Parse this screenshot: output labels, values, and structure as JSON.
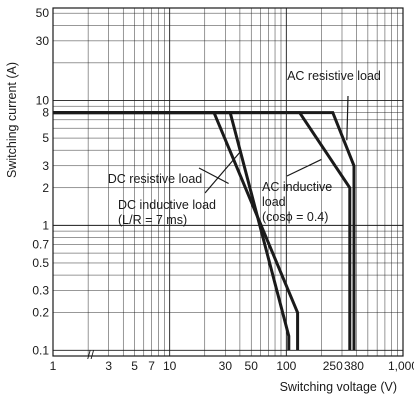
{
  "chart_data": {
    "type": "line",
    "xlabel": "Switching voltage (V)",
    "ylabel": "Switching current (A)",
    "x_scale": "log",
    "y_scale": "log",
    "xlim": [
      1,
      1000
    ],
    "ylim": [
      0.09,
      55
    ],
    "grid": true,
    "x_ticks": [
      {
        "value": 1,
        "label": "1"
      },
      {
        "value": 3,
        "label": "3"
      },
      {
        "value": 5,
        "label": "5"
      },
      {
        "value": 7,
        "label": "7"
      },
      {
        "value": 10,
        "label": "10"
      },
      {
        "value": 30,
        "label": "30"
      },
      {
        "value": 50,
        "label": "50"
      },
      {
        "value": 100,
        "label": "100"
      },
      {
        "value": 250,
        "label": "250"
      },
      {
        "value": 380,
        "label": "380"
      },
      {
        "value": 1000,
        "label": "1,000"
      }
    ],
    "y_ticks": [
      {
        "value": 0.1,
        "label": "0.1"
      },
      {
        "value": 0.2,
        "label": "0.2"
      },
      {
        "value": 0.3,
        "label": "0.3"
      },
      {
        "value": 0.5,
        "label": "0.5"
      },
      {
        "value": 0.7,
        "label": "0.7"
      },
      {
        "value": 1,
        "label": "1"
      },
      {
        "value": 2,
        "label": "2"
      },
      {
        "value": 3,
        "label": "3"
      },
      {
        "value": 5,
        "label": "5"
      },
      {
        "value": 8,
        "label": "8"
      },
      {
        "value": 10,
        "label": "10"
      },
      {
        "value": 30,
        "label": "30"
      },
      {
        "value": 50,
        "label": "50"
      }
    ],
    "axis_break_marker": "//",
    "series": [
      {
        "key": "dc_resistive",
        "x": [
          1,
          24,
          125,
          125
        ],
        "y": [
          8,
          8,
          0.2,
          0.1
        ]
      },
      {
        "key": "dc_inductive",
        "x": [
          1,
          33,
          105,
          105
        ],
        "y": [
          8,
          8,
          0.13,
          0.1
        ]
      },
      {
        "key": "ac_inductive",
        "x": [
          1,
          130,
          350,
          350
        ],
        "y": [
          8,
          8,
          2,
          0.1
        ]
      },
      {
        "key": "ac_resistive",
        "x": [
          1,
          250,
          380,
          380
        ],
        "y": [
          8,
          8,
          3,
          0.1
        ]
      }
    ],
    "annotations": [
      {
        "key": "ac_resistive",
        "text": "AC resistive load"
      },
      {
        "key": "dc_resistive",
        "text": "DC resistive load"
      },
      {
        "key": "ac_inductive",
        "lines": [
          "AC inductive",
          "load",
          "(cosϕ = 0.4)"
        ]
      },
      {
        "key": "dc_inductive",
        "lines": [
          "DC inductive load",
          "(L/R = 7 ms)"
        ]
      }
    ]
  }
}
